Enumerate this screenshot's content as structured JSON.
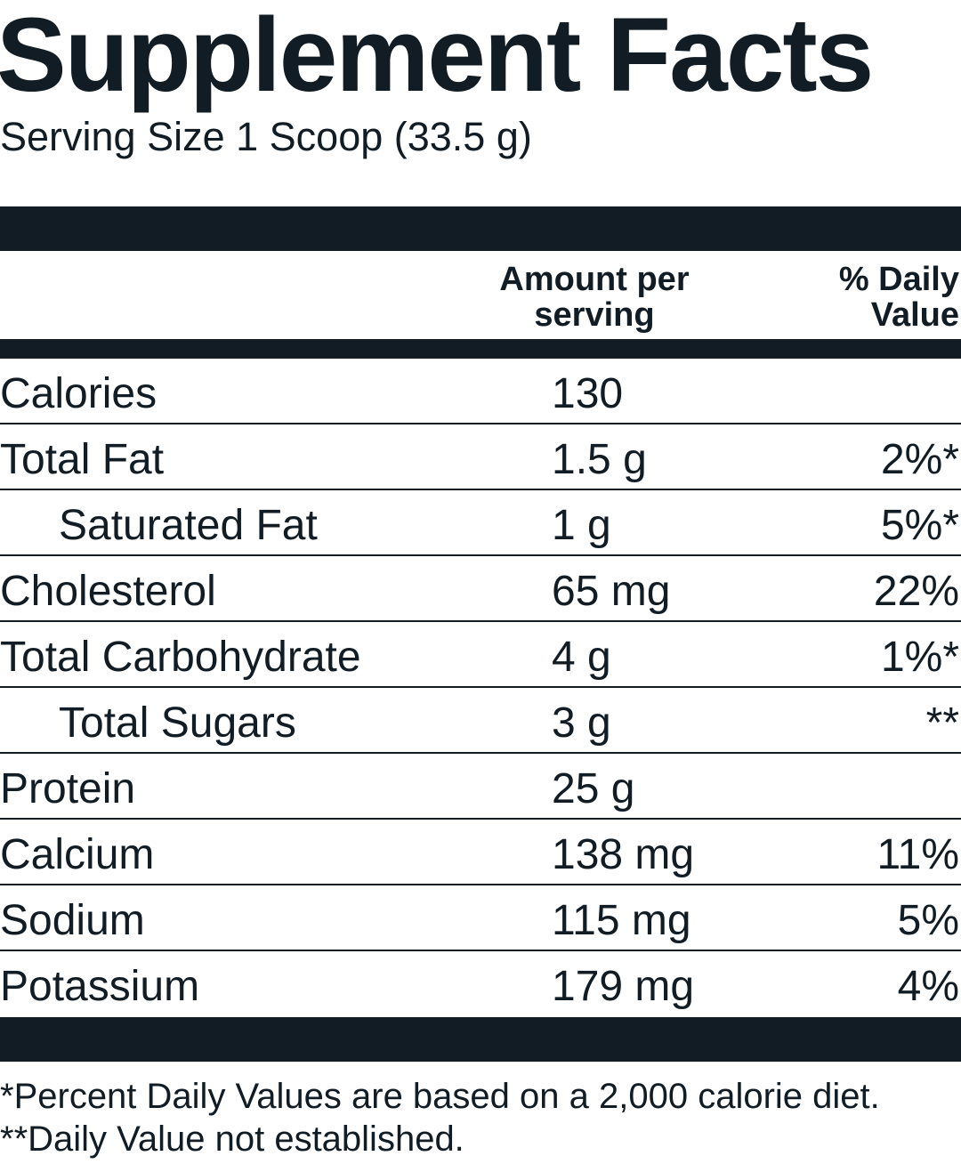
{
  "title": "Supplement Facts",
  "serving_size": "Serving Size 1 Scoop (33.5 g)",
  "header": {
    "amount": [
      "Amount per",
      "serving"
    ],
    "daily_value": [
      "% Daily",
      "Value"
    ]
  },
  "rows": [
    {
      "name": "Calories",
      "amount": "130"
    },
    {
      "name": "Total Fat",
      "amount": "1.5 g",
      "daily_value": "2%*",
      "sub": [
        {
          "name": "Saturated Fat",
          "amount": "1 g",
          "daily_value": "5%*"
        }
      ]
    },
    {
      "name": "Cholesterol",
      "amount": "65 mg",
      "daily_value": "22%"
    },
    {
      "name": "Total Carbohydrate",
      "amount": "4 g",
      "daily_value": "1%*",
      "sub": [
        {
          "name": "Total Sugars",
          "amount": "3 g",
          "daily_value": "**"
        }
      ]
    },
    {
      "name": "Protein",
      "amount": "25 g"
    },
    {
      "name": "Calcium",
      "amount": "138 mg",
      "daily_value": "11%"
    },
    {
      "name": "Sodium",
      "amount": "115 mg",
      "daily_value": "5%"
    },
    {
      "name": "Potassium",
      "amount": "179 mg",
      "daily_value": "4%"
    }
  ],
  "footnotes": [
    "*Percent Daily Values are based on a 2,000 calorie diet.",
    "**Daily Value not established."
  ]
}
